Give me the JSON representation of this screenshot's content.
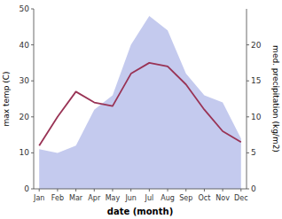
{
  "chart_data": {
    "type": "line",
    "xlabel": "date (month)",
    "ylabel": "max temp (C)",
    "y2label": "med. precipitation (kg/m2)",
    "categories": [
      "Jan",
      "Feb",
      "Mar",
      "Apr",
      "May",
      "Jun",
      "Jul",
      "Aug",
      "Sep",
      "Oct",
      "Nov",
      "Dec"
    ],
    "series": [
      {
        "type": "area",
        "axis": "y2",
        "color": "#b0b8e8",
        "values": [
          5.5,
          5,
          6,
          11,
          13,
          20,
          24,
          22,
          16,
          13,
          12,
          7
        ]
      },
      {
        "type": "line",
        "color": "#993355",
        "values": [
          12,
          20,
          27,
          24,
          23,
          32,
          35,
          34,
          29,
          22,
          16,
          13
        ]
      }
    ],
    "ylim": [
      0,
      50
    ],
    "yticks": [
      0,
      10,
      20,
      30,
      40,
      50
    ],
    "y2lim": [
      0,
      25
    ],
    "y2ticks": [
      0,
      5,
      10,
      15,
      20
    ]
  }
}
